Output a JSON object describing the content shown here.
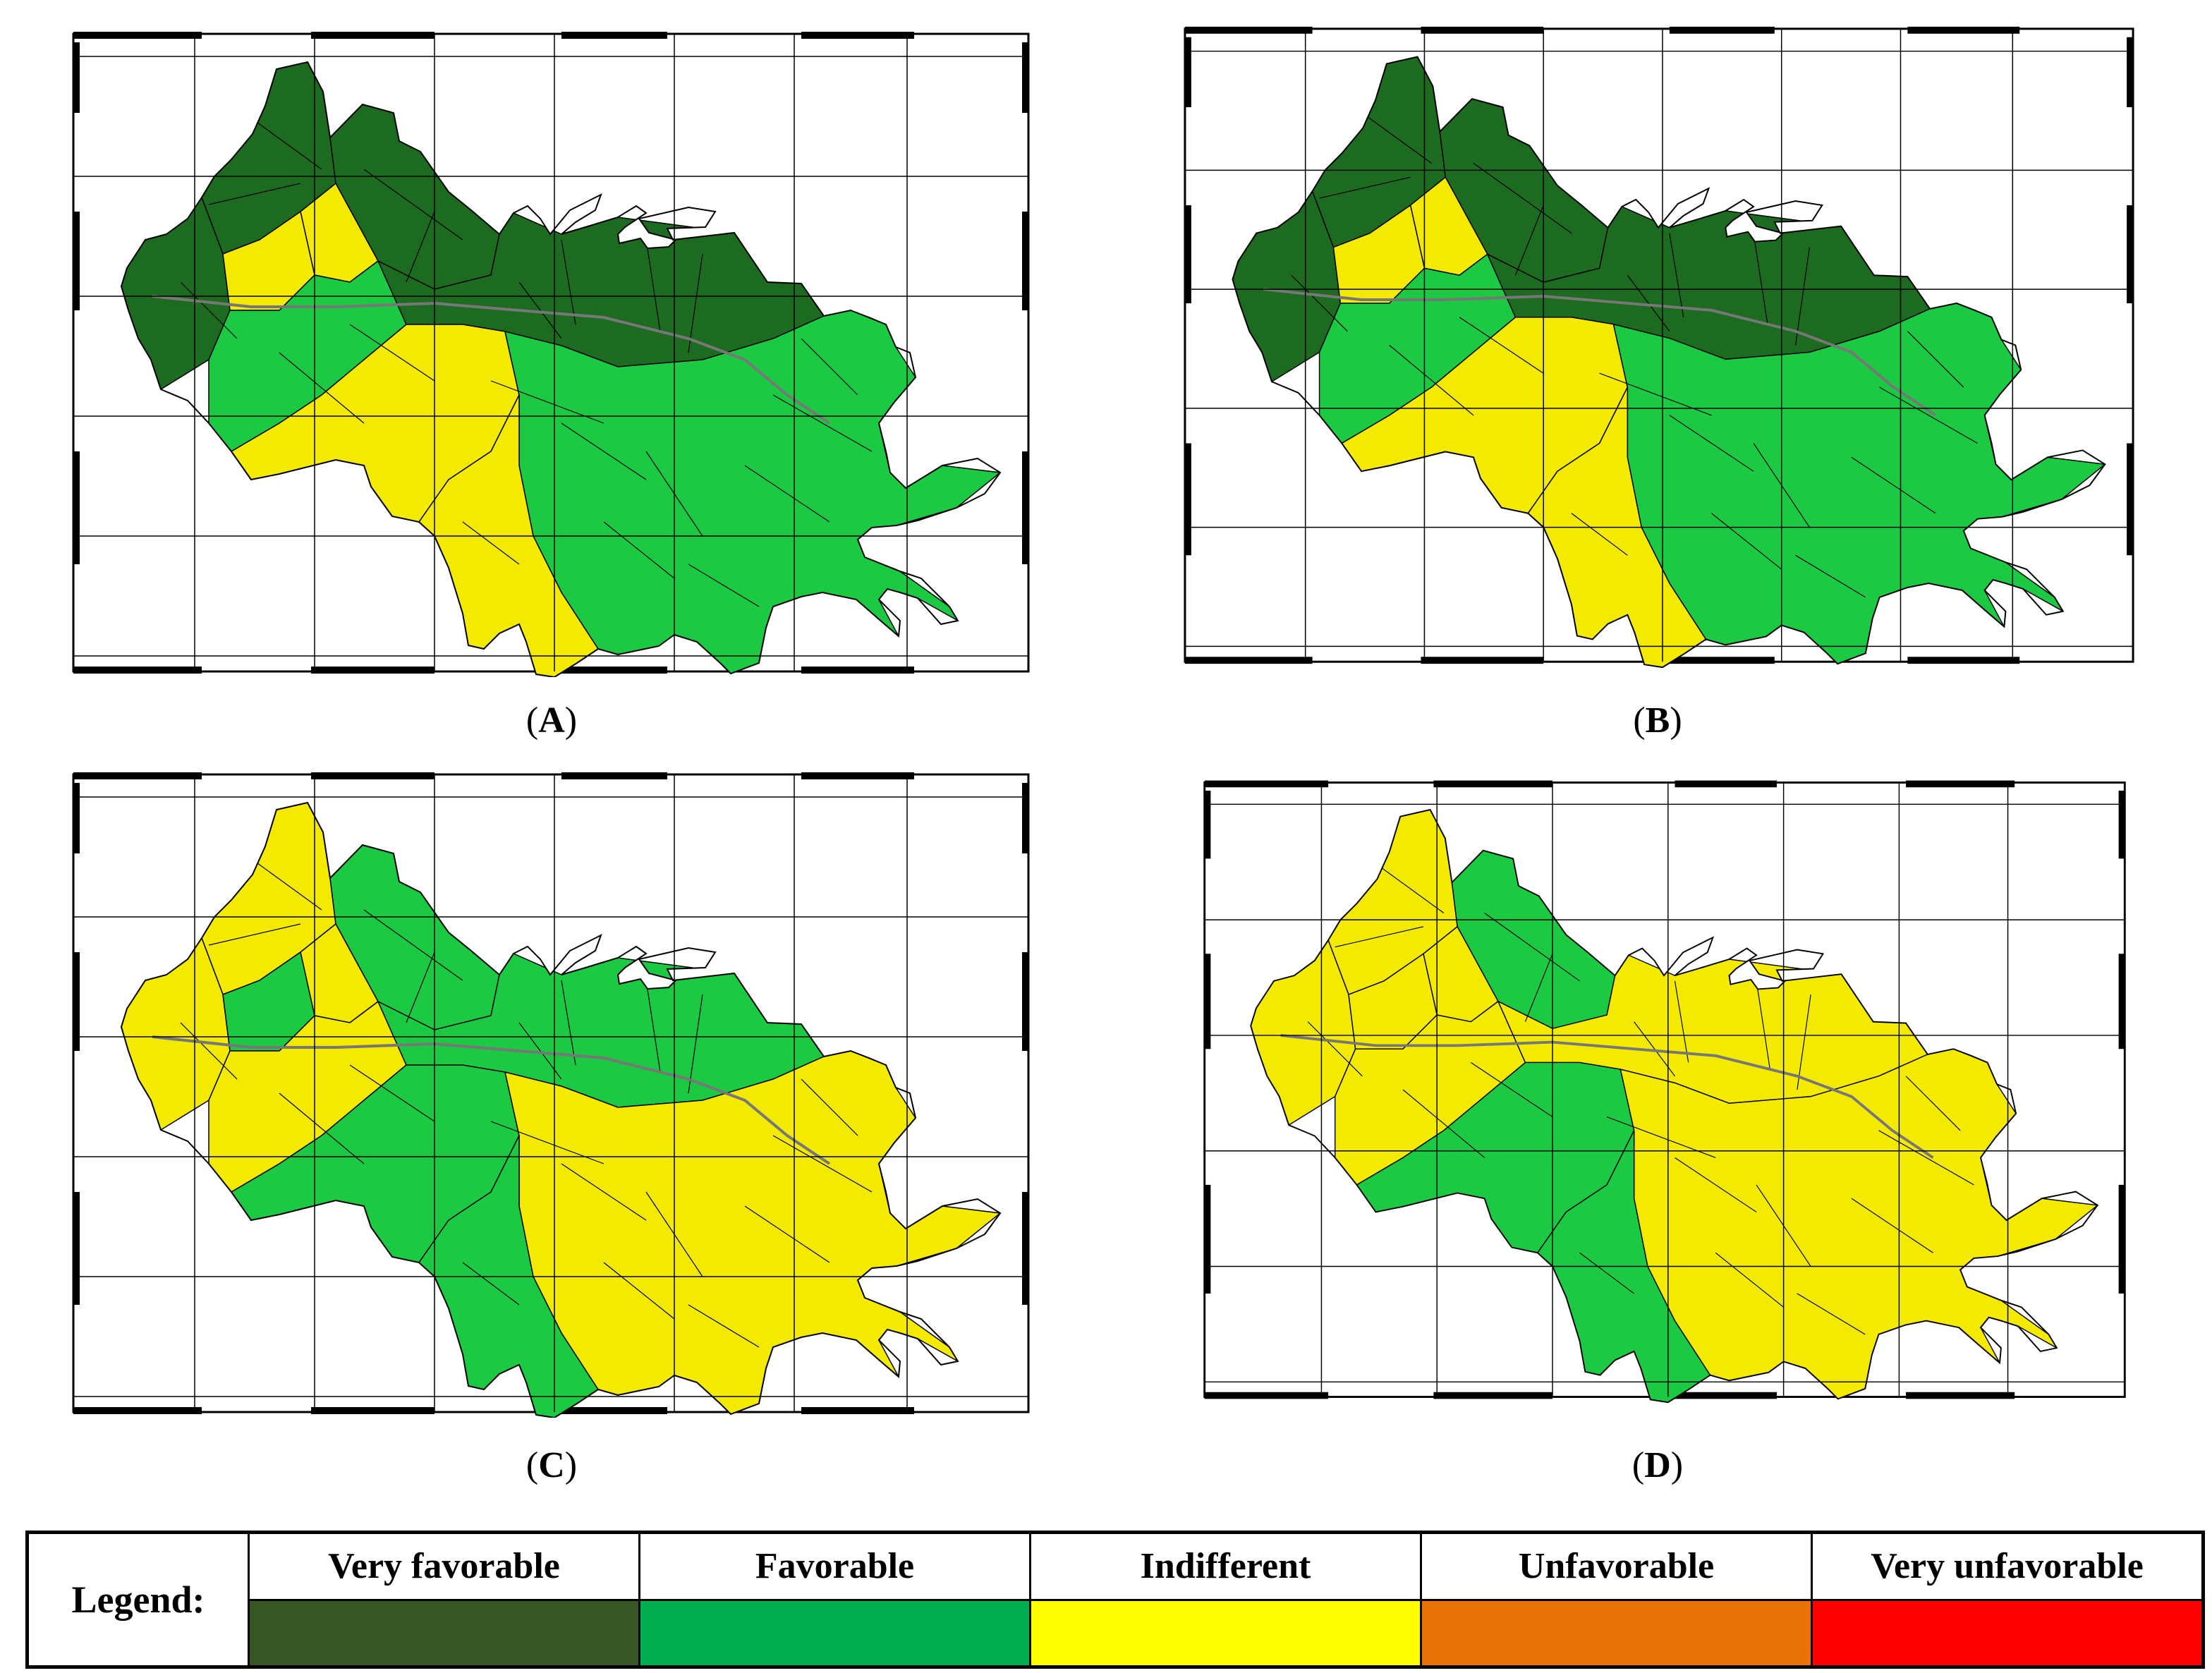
{
  "panels": [
    {
      "id": "A",
      "label": "A",
      "colors": [
        "#1c6b20",
        "#1c6b20",
        "#f4ea00",
        "#1c6b20",
        "#f4ea00",
        "#1bc942",
        "#1c6b20",
        "#f4ea00",
        "#1bc942",
        "#f4ea00"
      ]
    },
    {
      "id": "B",
      "label": "B",
      "colors": [
        "#1c6b20",
        "#1c6b20",
        "#f4ea00",
        "#1c6b20",
        "#f4ea00",
        "#1bc942",
        "#1c6b20",
        "#f4ea00",
        "#1bc942",
        "#f4ea00"
      ]
    },
    {
      "id": "C",
      "label": "C",
      "colors": [
        "#f4ea00",
        "#1bc942",
        "#f4ea00",
        "#f4ea00",
        "#1bc942",
        "#f4ea00",
        "#1bc942",
        "#1bc942",
        "#f4ea00",
        "#1bc942"
      ]
    },
    {
      "id": "D",
      "label": "D",
      "colors": [
        "#f4ea00",
        "#1bc942",
        "#f4ea00",
        "#f4ea00",
        "#f4ea00",
        "#f4ea00",
        "#f4ea00",
        "#1bc942",
        "#f4ea00",
        "#1bc942"
      ]
    }
  ],
  "legend": {
    "title": "Legend:",
    "items": [
      {
        "label": "Very favorable",
        "color": "#375623"
      },
      {
        "label": "Favorable",
        "color": "#00b050"
      },
      {
        "label": "Indifferent",
        "color": "#ffff00"
      },
      {
        "label": "Unfavorable",
        "color": "#e97306"
      },
      {
        "label": "Very unfavorable",
        "color": "#ff0000"
      }
    ]
  }
}
